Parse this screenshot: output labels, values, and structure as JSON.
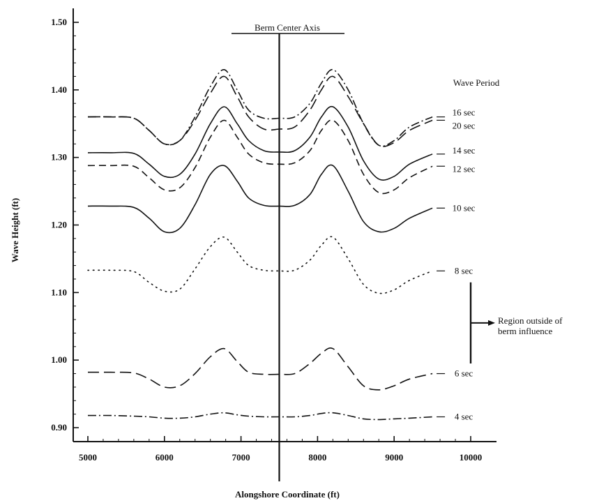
{
  "chart_data": {
    "type": "line",
    "title": "",
    "xlabel": "Alongshore Coordinate (ft)",
    "ylabel": "Wave Height (ft)",
    "xlim": [
      4800,
      10300
    ],
    "ylim": [
      0.88,
      1.52
    ],
    "xticks": [
      5000,
      6000,
      7000,
      8000,
      9000,
      10000
    ],
    "xtick_labels": [
      "5000",
      "6000",
      "7000",
      "8000",
      "9000",
      "10000"
    ],
    "yticks": [
      0.9,
      1.0,
      1.1,
      1.2,
      1.3,
      1.4,
      1.5
    ],
    "ytick_labels": [
      "0.90",
      "1.00",
      "1.10",
      "1.20",
      "1.30",
      "1.40",
      "1.50"
    ],
    "legend_title": "Wave Period",
    "legend_placement": "right",
    "grid": false,
    "x": [
      5000,
      5300,
      5600,
      5800,
      6000,
      6200,
      6400,
      6600,
      6780,
      6950,
      7100,
      7300,
      7500,
      7700,
      7900,
      8050,
      8200,
      8400,
      8600,
      8800,
      9000,
      9200,
      9500
    ],
    "series": [
      {
        "name": "16 sec",
        "dash": "dashdot",
        "values": [
          1.36,
          1.36,
          1.358,
          1.34,
          1.32,
          1.325,
          1.36,
          1.405,
          1.43,
          1.4,
          1.37,
          1.358,
          1.358,
          1.36,
          1.38,
          1.41,
          1.43,
          1.4,
          1.35,
          1.318,
          1.325,
          1.345,
          1.36
        ]
      },
      {
        "name": "20 sec",
        "dash": "longdash",
        "values": [
          1.36,
          1.36,
          1.358,
          1.34,
          1.32,
          1.325,
          1.355,
          1.395,
          1.42,
          1.39,
          1.36,
          1.342,
          1.342,
          1.345,
          1.37,
          1.4,
          1.42,
          1.39,
          1.35,
          1.318,
          1.322,
          1.34,
          1.355
        ]
      },
      {
        "name": "14 sec",
        "dash": "solid",
        "values": [
          1.307,
          1.307,
          1.306,
          1.29,
          1.272,
          1.275,
          1.305,
          1.35,
          1.375,
          1.35,
          1.325,
          1.31,
          1.308,
          1.31,
          1.33,
          1.36,
          1.375,
          1.345,
          1.295,
          1.268,
          1.272,
          1.29,
          1.305
        ]
      },
      {
        "name": "12 sec",
        "dash": "dashed",
        "values": [
          1.288,
          1.288,
          1.287,
          1.27,
          1.252,
          1.255,
          1.285,
          1.33,
          1.355,
          1.33,
          1.305,
          1.292,
          1.29,
          1.292,
          1.31,
          1.34,
          1.355,
          1.325,
          1.275,
          1.248,
          1.252,
          1.27,
          1.287
        ]
      },
      {
        "name": "10 sec",
        "dash": "solid",
        "values": [
          1.228,
          1.228,
          1.226,
          1.21,
          1.19,
          1.195,
          1.23,
          1.275,
          1.288,
          1.265,
          1.24,
          1.229,
          1.228,
          1.229,
          1.245,
          1.275,
          1.288,
          1.25,
          1.205,
          1.19,
          1.195,
          1.21,
          1.225
        ]
      },
      {
        "name": "8 sec",
        "dash": "dotted",
        "values": [
          1.133,
          1.133,
          1.131,
          1.115,
          1.102,
          1.105,
          1.135,
          1.168,
          1.182,
          1.16,
          1.14,
          1.133,
          1.132,
          1.133,
          1.148,
          1.17,
          1.182,
          1.15,
          1.112,
          1.099,
          1.104,
          1.118,
          1.132
        ]
      },
      {
        "name": "6 sec",
        "dash": "longdash",
        "values": [
          0.982,
          0.982,
          0.981,
          0.972,
          0.96,
          0.962,
          0.98,
          1.005,
          1.017,
          0.998,
          0.982,
          0.979,
          0.979,
          0.98,
          0.995,
          1.01,
          1.017,
          0.99,
          0.962,
          0.956,
          0.962,
          0.972,
          0.98
        ]
      },
      {
        "name": "4 sec",
        "dash": "dashdot",
        "values": [
          0.918,
          0.918,
          0.917,
          0.916,
          0.914,
          0.914,
          0.916,
          0.92,
          0.922,
          0.919,
          0.917,
          0.916,
          0.916,
          0.916,
          0.918,
          0.921,
          0.922,
          0.918,
          0.913,
          0.912,
          0.913,
          0.914,
          0.916
        ]
      }
    ],
    "berm_axis": {
      "label": "Berm Center Axis",
      "x": 7500
    },
    "annotation": {
      "lines": [
        "Region outside of",
        "berm influence"
      ],
      "y_from": 1.115,
      "y_to": 0.995
    }
  }
}
